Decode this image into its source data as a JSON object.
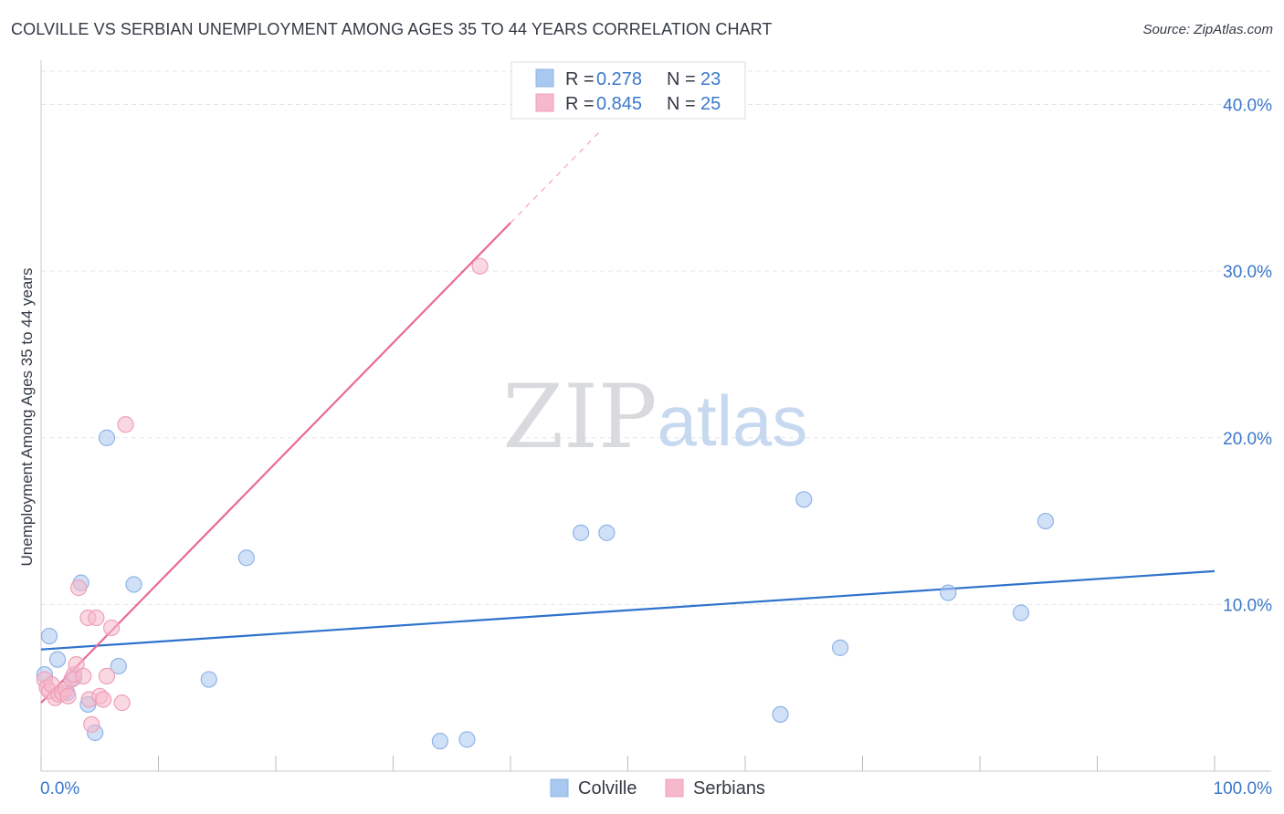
{
  "title": "COLVILLE VS SERBIAN UNEMPLOYMENT AMONG AGES 35 TO 44 YEARS CORRELATION CHART",
  "source": "Source: ZipAtlas.com",
  "watermark": {
    "zip": "ZIP",
    "atlas": "atlas"
  },
  "colors": {
    "blue_fill": "#a9c8f0",
    "blue_stroke": "#8fb3e6",
    "blue_line": "#2f72cc",
    "pink_fill": "#f6b8cb",
    "pink_stroke": "#ef9fb8",
    "pink_line": "#ea6a94",
    "axis_text": "#3b78c9",
    "grid": "#e3e6ea"
  },
  "chart_data": {
    "type": "scatter",
    "title": "COLVILLE VS SERBIAN UNEMPLOYMENT AMONG AGES 35 TO 44 YEARS CORRELATION CHART",
    "xlabel": "",
    "ylabel": "Unemployment Among Ages 35 to 44 years",
    "xlim": [
      0,
      100
    ],
    "ylim": [
      0,
      42
    ],
    "x_tick_labels": [
      "0.0%",
      "100.0%"
    ],
    "y_ticks": [
      10,
      20,
      30,
      40
    ],
    "y_tick_labels": [
      "10.0%",
      "20.0%",
      "30.0%",
      "40.0%"
    ],
    "legend": [
      {
        "name": "Colville",
        "r_label": "R =",
        "r": "0.278",
        "n_label": "N =",
        "n": "23"
      },
      {
        "name": "Serbians",
        "r_label": "R =",
        "r": "0.845",
        "n_label": "N =",
        "n": "25"
      }
    ],
    "series": [
      {
        "name": "Colville",
        "color": "blue",
        "points": [
          [
            0.3,
            5.8
          ],
          [
            0.7,
            8.1
          ],
          [
            1.4,
            6.7
          ],
          [
            2.2,
            4.7
          ],
          [
            2.8,
            5.6
          ],
          [
            3.4,
            11.3
          ],
          [
            4.0,
            4.0
          ],
          [
            4.6,
            2.3
          ],
          [
            5.6,
            20.0
          ],
          [
            6.6,
            6.3
          ],
          [
            7.9,
            11.2
          ],
          [
            14.3,
            5.5
          ],
          [
            17.5,
            12.8
          ],
          [
            34.0,
            1.8
          ],
          [
            36.3,
            1.9
          ],
          [
            46.0,
            14.3
          ],
          [
            48.2,
            14.3
          ],
          [
            63.0,
            3.4
          ],
          [
            65.0,
            16.3
          ],
          [
            68.1,
            7.4
          ],
          [
            77.3,
            10.7
          ],
          [
            83.5,
            9.5
          ],
          [
            85.6,
            15.0
          ]
        ],
        "trend": {
          "x0": 0,
          "y0": 7.3,
          "x1": 100,
          "y1": 12.0
        }
      },
      {
        "name": "Serbians",
        "color": "pink",
        "points": [
          [
            0.3,
            5.5
          ],
          [
            0.5,
            5.0
          ],
          [
            0.7,
            4.8
          ],
          [
            0.9,
            5.2
          ],
          [
            1.2,
            4.4
          ],
          [
            1.5,
            4.6
          ],
          [
            1.8,
            4.7
          ],
          [
            2.1,
            4.9
          ],
          [
            2.3,
            4.5
          ],
          [
            2.6,
            5.5
          ],
          [
            2.8,
            5.8
          ],
          [
            3.0,
            6.4
          ],
          [
            3.2,
            11.0
          ],
          [
            3.6,
            5.7
          ],
          [
            4.0,
            9.2
          ],
          [
            4.1,
            4.3
          ],
          [
            4.3,
            2.8
          ],
          [
            4.7,
            9.2
          ],
          [
            5.0,
            4.5
          ],
          [
            5.3,
            4.3
          ],
          [
            5.6,
            5.7
          ],
          [
            6.0,
            8.6
          ],
          [
            6.9,
            4.1
          ],
          [
            7.2,
            20.8
          ],
          [
            37.4,
            30.3
          ]
        ],
        "trend": {
          "x0": 0,
          "y0": 4.1,
          "x1": 40.0,
          "y1": 32.9,
          "dash_to_x": 47.5
        }
      }
    ]
  }
}
